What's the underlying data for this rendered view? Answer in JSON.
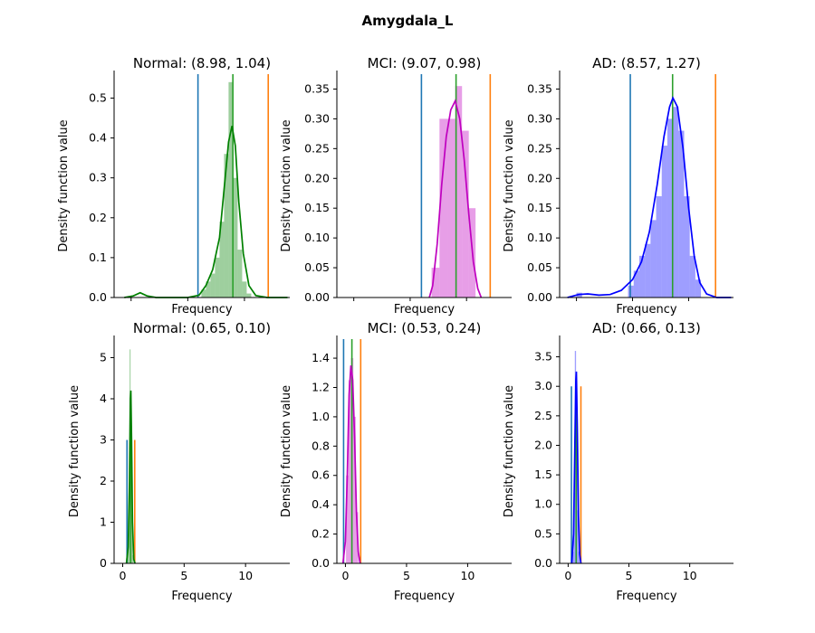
{
  "figure": {
    "title": "Amygdala_L"
  },
  "colors": {
    "blue_line": "#1f77b4",
    "orange_line": "#ff7f0e",
    "green_line": "#2ca02c",
    "Normal": "#008000",
    "MCI": "#bf00bf",
    "AD": "#0000ff"
  },
  "chart_data": [
    {
      "type": "histogram-kde",
      "group": "Normal",
      "title": "Normal: (8.98, 1.04)",
      "xlabel": "Frequency",
      "ylabel": "Density function value",
      "xlim": [
        -1.5,
        14
      ],
      "ylim": [
        0,
        0.56
      ],
      "yticks": [
        0.0,
        0.1,
        0.2,
        0.3,
        0.4,
        0.5
      ],
      "xticks": [],
      "vlines": {
        "blue": 5.9,
        "green": 8.98,
        "orange": 12.1
      },
      "bins": [
        {
          "x0": 6.2,
          "x1": 6.6,
          "h": 0.02
        },
        {
          "x0": 6.6,
          "x1": 7.0,
          "h": 0.04
        },
        {
          "x0": 7.0,
          "x1": 7.4,
          "h": 0.06
        },
        {
          "x0": 7.4,
          "x1": 7.8,
          "h": 0.1
        },
        {
          "x0": 7.8,
          "x1": 8.2,
          "h": 0.19
        },
        {
          "x0": 8.2,
          "x1": 8.6,
          "h": 0.36
        },
        {
          "x0": 8.6,
          "x1": 9.0,
          "h": 0.54
        },
        {
          "x0": 9.0,
          "x1": 9.4,
          "h": 0.3
        },
        {
          "x0": 9.4,
          "x1": 9.8,
          "h": 0.12
        },
        {
          "x0": 9.8,
          "x1": 10.2,
          "h": 0.04
        },
        {
          "x0": 10.2,
          "x1": 10.6,
          "h": 0.01
        }
      ],
      "kde": [
        [
          -0.6,
          0.0
        ],
        [
          0.2,
          0.004
        ],
        [
          0.8,
          0.012
        ],
        [
          1.4,
          0.004
        ],
        [
          2.2,
          0.0
        ],
        [
          5.0,
          0.0
        ],
        [
          6.0,
          0.006
        ],
        [
          6.6,
          0.03
        ],
        [
          7.2,
          0.07
        ],
        [
          7.8,
          0.15
        ],
        [
          8.2,
          0.27
        ],
        [
          8.6,
          0.39
        ],
        [
          8.9,
          0.43
        ],
        [
          9.2,
          0.38
        ],
        [
          9.5,
          0.24
        ],
        [
          9.9,
          0.11
        ],
        [
          10.4,
          0.03
        ],
        [
          11.0,
          0.005
        ],
        [
          12.0,
          0.0
        ],
        [
          13.8,
          0.0
        ]
      ]
    },
    {
      "type": "histogram-kde",
      "group": "MCI",
      "title": "MCI: (9.07, 0.98)",
      "xlabel": "Frequency",
      "ylabel": "Density function value",
      "xlim": [
        -1.5,
        14
      ],
      "ylim": [
        0,
        0.375
      ],
      "yticks": [
        0.0,
        0.05,
        0.1,
        0.15,
        0.2,
        0.25,
        0.3,
        0.35
      ],
      "xticks": [],
      "vlines": {
        "blue": 6.0,
        "green": 9.07,
        "orange": 12.1
      },
      "bins": [
        {
          "x0": 6.9,
          "x1": 7.6,
          "h": 0.05
        },
        {
          "x0": 7.6,
          "x1": 8.3,
          "h": 0.3
        },
        {
          "x0": 8.3,
          "x1": 9.0,
          "h": 0.3
        },
        {
          "x0": 9.0,
          "x1": 9.6,
          "h": 0.355
        },
        {
          "x0": 9.6,
          "x1": 10.2,
          "h": 0.28
        },
        {
          "x0": 10.2,
          "x1": 10.8,
          "h": 0.15
        }
      ],
      "kde": [
        [
          6.7,
          0.0
        ],
        [
          7.0,
          0.02
        ],
        [
          7.4,
          0.09
        ],
        [
          7.8,
          0.19
        ],
        [
          8.2,
          0.27
        ],
        [
          8.6,
          0.315
        ],
        [
          9.0,
          0.33
        ],
        [
          9.4,
          0.3
        ],
        [
          9.8,
          0.23
        ],
        [
          10.2,
          0.14
        ],
        [
          10.6,
          0.06
        ],
        [
          11.0,
          0.015
        ],
        [
          11.3,
          0.0
        ]
      ]
    },
    {
      "type": "histogram-kde",
      "group": "AD",
      "title": "AD: (8.57, 1.27)",
      "xlabel": "Frequency",
      "ylabel": "Density function value",
      "xlim": [
        -1.5,
        14
      ],
      "ylim": [
        0,
        0.375
      ],
      "yticks": [
        0.0,
        0.05,
        0.1,
        0.15,
        0.2,
        0.25,
        0.3,
        0.35
      ],
      "xticks": [],
      "vlines": {
        "blue": 4.8,
        "green": 8.57,
        "orange": 12.4
      },
      "bins": [
        {
          "x0": 0.0,
          "x1": 0.5,
          "h": 0.008
        },
        {
          "x0": 4.6,
          "x1": 5.1,
          "h": 0.02
        },
        {
          "x0": 5.1,
          "x1": 5.6,
          "h": 0.045
        },
        {
          "x0": 5.6,
          "x1": 6.1,
          "h": 0.07
        },
        {
          "x0": 6.1,
          "x1": 6.6,
          "h": 0.09
        },
        {
          "x0": 6.6,
          "x1": 7.1,
          "h": 0.13
        },
        {
          "x0": 7.1,
          "x1": 7.6,
          "h": 0.17
        },
        {
          "x0": 7.6,
          "x1": 8.1,
          "h": 0.255
        },
        {
          "x0": 8.1,
          "x1": 8.6,
          "h": 0.3
        },
        {
          "x0": 8.6,
          "x1": 9.1,
          "h": 0.32
        },
        {
          "x0": 9.1,
          "x1": 9.6,
          "h": 0.28
        },
        {
          "x0": 9.6,
          "x1": 10.1,
          "h": 0.17
        },
        {
          "x0": 10.1,
          "x1": 10.6,
          "h": 0.07
        },
        {
          "x0": 10.6,
          "x1": 11.1,
          "h": 0.03
        }
      ],
      "kde": [
        [
          -0.8,
          0.0
        ],
        [
          0.2,
          0.005
        ],
        [
          1.0,
          0.006
        ],
        [
          2.0,
          0.004
        ],
        [
          3.0,
          0.005
        ],
        [
          4.0,
          0.012
        ],
        [
          5.0,
          0.03
        ],
        [
          5.8,
          0.06
        ],
        [
          6.5,
          0.11
        ],
        [
          7.2,
          0.19
        ],
        [
          7.8,
          0.27
        ],
        [
          8.3,
          0.32
        ],
        [
          8.6,
          0.335
        ],
        [
          9.0,
          0.32
        ],
        [
          9.5,
          0.25
        ],
        [
          10.0,
          0.15
        ],
        [
          10.5,
          0.07
        ],
        [
          11.0,
          0.025
        ],
        [
          11.6,
          0.006
        ],
        [
          12.5,
          0.0
        ],
        [
          13.8,
          0.0
        ]
      ]
    },
    {
      "type": "histogram-kde",
      "group": "Normal",
      "title": "Normal: (0.65, 0.10)",
      "xlabel": "Frequency",
      "ylabel": "Density function value",
      "xlim": [
        -0.7,
        13.6
      ],
      "ylim": [
        0,
        5.45
      ],
      "yticks": [
        0,
        1,
        2,
        3,
        4,
        5
      ],
      "xticks": [
        0,
        5,
        10
      ],
      "vlines": {
        "blue": 0.35,
        "green": 0.65,
        "orange": 0.98
      },
      "vline_top": 3.0,
      "bins": [
        {
          "x0": 0.4,
          "x1": 0.48,
          "h": 0.3
        },
        {
          "x0": 0.48,
          "x1": 0.56,
          "h": 1.6
        },
        {
          "x0": 0.56,
          "x1": 0.64,
          "h": 5.2
        },
        {
          "x0": 0.64,
          "x1": 0.72,
          "h": 4.0
        },
        {
          "x0": 0.72,
          "x1": 0.8,
          "h": 1.2
        },
        {
          "x0": 0.8,
          "x1": 0.88,
          "h": 0.2
        }
      ],
      "kde": [
        [
          0.3,
          0.0
        ],
        [
          0.45,
          0.4
        ],
        [
          0.55,
          2.0
        ],
        [
          0.62,
          4.0
        ],
        [
          0.66,
          4.2
        ],
        [
          0.72,
          3.0
        ],
        [
          0.8,
          1.0
        ],
        [
          0.9,
          0.1
        ],
        [
          1.0,
          0.0
        ]
      ]
    },
    {
      "type": "histogram-kde",
      "group": "MCI",
      "title": "MCI: (0.53, 0.24)",
      "xlabel": "Frequency",
      "ylabel": "Density function value",
      "xlim": [
        -0.7,
        13.6
      ],
      "ylim": [
        0,
        1.53
      ],
      "yticks": [
        0.0,
        0.2,
        0.4,
        0.6,
        0.8,
        1.0,
        1.2,
        1.4
      ],
      "xticks": [
        0,
        5,
        10
      ],
      "vlines": {
        "blue": -0.15,
        "green": 0.53,
        "orange": 1.25
      },
      "bins": [
        {
          "x0": 0.05,
          "x1": 0.25,
          "h": 0.6
        },
        {
          "x0": 0.25,
          "x1": 0.45,
          "h": 1.25
        },
        {
          "x0": 0.45,
          "x1": 0.65,
          "h": 1.4
        },
        {
          "x0": 0.65,
          "x1": 0.85,
          "h": 1.0
        },
        {
          "x0": 0.85,
          "x1": 1.05,
          "h": 0.35
        }
      ],
      "kde": [
        [
          -0.2,
          0.0
        ],
        [
          0.0,
          0.15
        ],
        [
          0.15,
          0.6
        ],
        [
          0.3,
          1.15
        ],
        [
          0.45,
          1.35
        ],
        [
          0.6,
          1.25
        ],
        [
          0.75,
          0.85
        ],
        [
          0.9,
          0.35
        ],
        [
          1.05,
          0.08
        ],
        [
          1.2,
          0.0
        ]
      ]
    },
    {
      "type": "histogram-kde",
      "group": "AD",
      "title": "AD: (0.66, 0.13)",
      "xlabel": "Frequency",
      "ylabel": "Density function value",
      "xlim": [
        -0.7,
        13.6
      ],
      "ylim": [
        0,
        3.8
      ],
      "yticks": [
        0.0,
        0.5,
        1.0,
        1.5,
        2.0,
        2.5,
        3.0,
        3.5
      ],
      "xticks": [
        0,
        5,
        10
      ],
      "vlines": {
        "blue": 0.27,
        "green": 0.66,
        "orange": 1.05
      },
      "vline_top": 3.0,
      "bins": [
        {
          "x0": 0.35,
          "x1": 0.45,
          "h": 0.2
        },
        {
          "x0": 0.45,
          "x1": 0.55,
          "h": 1.2
        },
        {
          "x0": 0.55,
          "x1": 0.65,
          "h": 3.6
        },
        {
          "x0": 0.65,
          "x1": 0.75,
          "h": 2.8
        },
        {
          "x0": 0.75,
          "x1": 0.85,
          "h": 0.9
        },
        {
          "x0": 0.85,
          "x1": 0.95,
          "h": 0.2
        }
      ],
      "kde": [
        [
          0.3,
          0.0
        ],
        [
          0.45,
          0.5
        ],
        [
          0.55,
          2.0
        ],
        [
          0.63,
          3.1
        ],
        [
          0.68,
          3.25
        ],
        [
          0.75,
          2.3
        ],
        [
          0.85,
          0.8
        ],
        [
          0.95,
          0.15
        ],
        [
          1.05,
          0.0
        ]
      ]
    }
  ]
}
